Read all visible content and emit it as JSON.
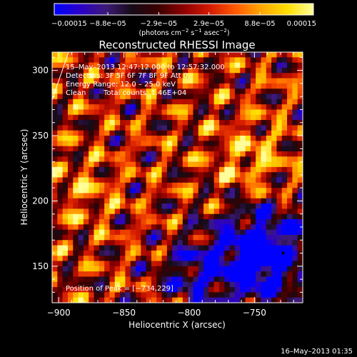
{
  "chart_data": {
    "type": "heatmap",
    "title": "Reconstructed RHESSI Image",
    "xlabel": "Heliocentric X (arcsec)",
    "ylabel": "Heliocentric Y (arcsec)",
    "xlim": [
      -905,
      -713
    ],
    "ylim": [
      122,
      314
    ],
    "x_ticks": [
      -900,
      -850,
      -800,
      -750
    ],
    "x_tick_labels": [
      "−900",
      "−850",
      "−800",
      "−750"
    ],
    "y_ticks": [
      150,
      200,
      250,
      300
    ],
    "y_tick_labels": [
      "150",
      "200",
      "250",
      "300"
    ],
    "colorbar": {
      "min": -0.00015,
      "max": 0.00015,
      "tick_values": [
        -0.00015,
        -8.8e-05,
        -2.9e-05,
        2.9e-05,
        8.8e-05,
        0.00015
      ],
      "tick_labels": [
        "−0.00015",
        "−8.8e−05",
        "−2.9e−05",
        "2.9e−05",
        "8.8e−05",
        "0.00015"
      ],
      "units_main": "(photons cm",
      "units_sup1": "−2",
      "units_mid1": " s",
      "units_sup2": "−1",
      "units_mid2": " asec",
      "units_sup3": "−2",
      "units_end": ")",
      "colors": [
        "#0000ff",
        "#2a00c8",
        "#3d1a78",
        "#160b16",
        "#3a0000",
        "#8e0000",
        "#d41a00",
        "#ff5a00",
        "#ffa800",
        "#ffe000",
        "#fffc9a"
      ]
    },
    "peak": {
      "x": -734,
      "y": 229
    },
    "grid": false
  },
  "info": {
    "time_range": "15–May–2013 12:47:12.000 to 12:57:32.000",
    "detectors": "Detectors: 3F 5F 6F 7F 8F 9F Att 0",
    "energy": "Energy Range: 12.0 – 25.0 keV",
    "method": "Clean",
    "counts": "Total counts: 1.46E+04",
    "peak_label": "Position of Peak = [−734,229]"
  },
  "footer": "16–May–2013 01:35"
}
